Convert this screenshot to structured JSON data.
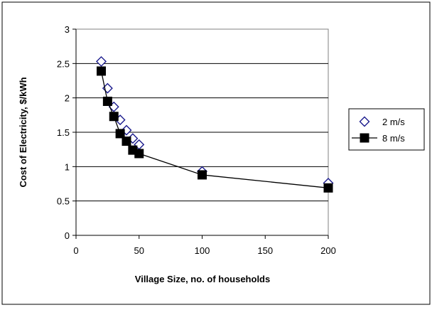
{
  "chart_data": {
    "type": "scatter",
    "xlabel": "Village Size, no. of households",
    "ylabel": "Cost of Electricity, $/kWh",
    "xlim": [
      0,
      200
    ],
    "ylim": [
      0,
      3
    ],
    "x_ticks": [
      "0",
      "50",
      "100",
      "150",
      "200"
    ],
    "y_ticks": [
      "0",
      "0.5",
      "1",
      "1.5",
      "2",
      "2.5",
      "3"
    ],
    "grid": "horizontal",
    "legend_position": "right",
    "series": [
      {
        "name": "2 m/s",
        "marker": "diamond-open",
        "line": false,
        "color": "#1a1a8c",
        "x": [
          20,
          25,
          30,
          35,
          40,
          45,
          50,
          100,
          200
        ],
        "y": [
          2.53,
          2.14,
          1.87,
          1.68,
          1.53,
          1.41,
          1.32,
          0.93,
          0.76
        ]
      },
      {
        "name": "8 m/s",
        "marker": "square-filled",
        "line": true,
        "color": "#000000",
        "x": [
          20,
          25,
          30,
          35,
          40,
          45,
          50,
          100,
          200
        ],
        "y": [
          2.39,
          1.95,
          1.73,
          1.48,
          1.37,
          1.24,
          1.19,
          0.88,
          0.69
        ]
      }
    ]
  }
}
